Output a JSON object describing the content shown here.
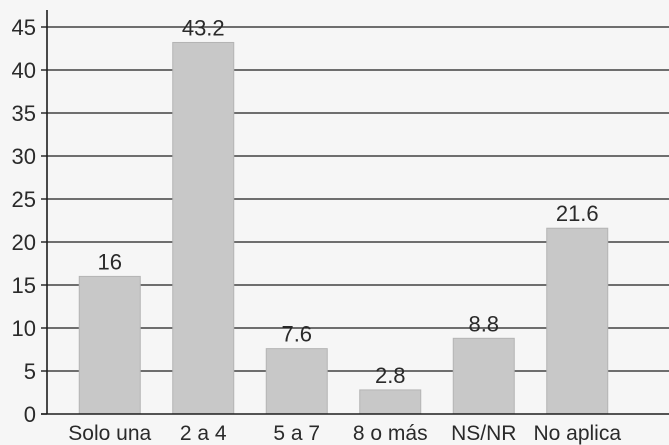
{
  "chart_data": {
    "type": "bar",
    "title": "",
    "xlabel": "",
    "ylabel": "",
    "categories": [
      "Solo una",
      "2 a 4",
      "5 a 7",
      "8 o más",
      "NS/NR",
      "No aplica"
    ],
    "values": [
      16,
      43.2,
      7.6,
      2.8,
      8.8,
      21.6
    ],
    "data_labels": [
      "16",
      "43.2",
      "7.6",
      "2.8",
      "8.8",
      "21.6"
    ],
    "ylim": [
      0,
      45
    ],
    "yticks": [
      0,
      5,
      10,
      15,
      20,
      25,
      30,
      35,
      40,
      45
    ],
    "ytick_labels": [
      "0",
      "5",
      "10",
      "15",
      "20",
      "25",
      "30",
      "35",
      "40",
      "45"
    ],
    "grid": true,
    "legend": "none",
    "bar_color": "#c8c8c8",
    "grid_color": "#1e1e1e",
    "text_color": "#2a2a2a"
  }
}
